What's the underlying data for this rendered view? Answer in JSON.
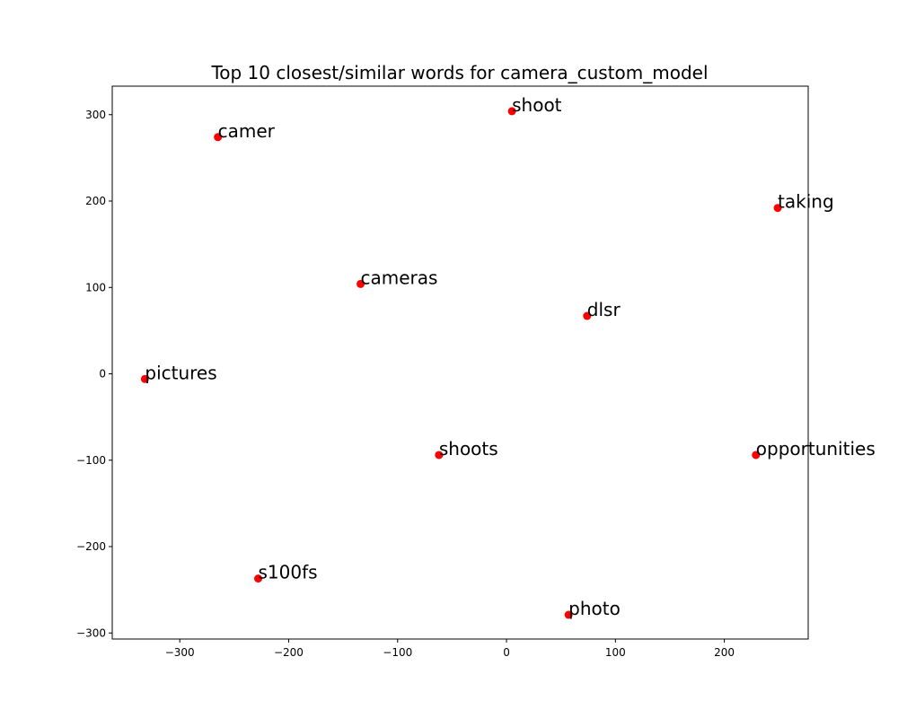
{
  "chart_data": {
    "type": "scatter",
    "title": "Top 10 closest/similar words for camera_custom_model",
    "xlabel": "",
    "ylabel": "",
    "xlim": [
      -362,
      277
    ],
    "ylim": [
      -307,
      333
    ],
    "xticks": [
      -300,
      -200,
      -100,
      0,
      100,
      200
    ],
    "yticks": [
      300,
      200,
      100,
      0,
      -100,
      -200,
      -300
    ],
    "grid": false,
    "legend": "none",
    "marker_color": "#ff0000",
    "points": [
      {
        "label": "shoot",
        "x": 5,
        "y": 304
      },
      {
        "label": "camer",
        "x": -265,
        "y": 274
      },
      {
        "label": "taking",
        "x": 249,
        "y": 192
      },
      {
        "label": "cameras",
        "x": -134,
        "y": 104
      },
      {
        "label": "dlsr",
        "x": 74,
        "y": 67
      },
      {
        "label": "pictures",
        "x": -332,
        "y": -6
      },
      {
        "label": "shoots",
        "x": -62,
        "y": -94
      },
      {
        "label": "opportunities",
        "x": 229,
        "y": -94
      },
      {
        "label": "s100fs",
        "x": -228,
        "y": -237
      },
      {
        "label": "photo",
        "x": 57,
        "y": -279
      }
    ]
  }
}
